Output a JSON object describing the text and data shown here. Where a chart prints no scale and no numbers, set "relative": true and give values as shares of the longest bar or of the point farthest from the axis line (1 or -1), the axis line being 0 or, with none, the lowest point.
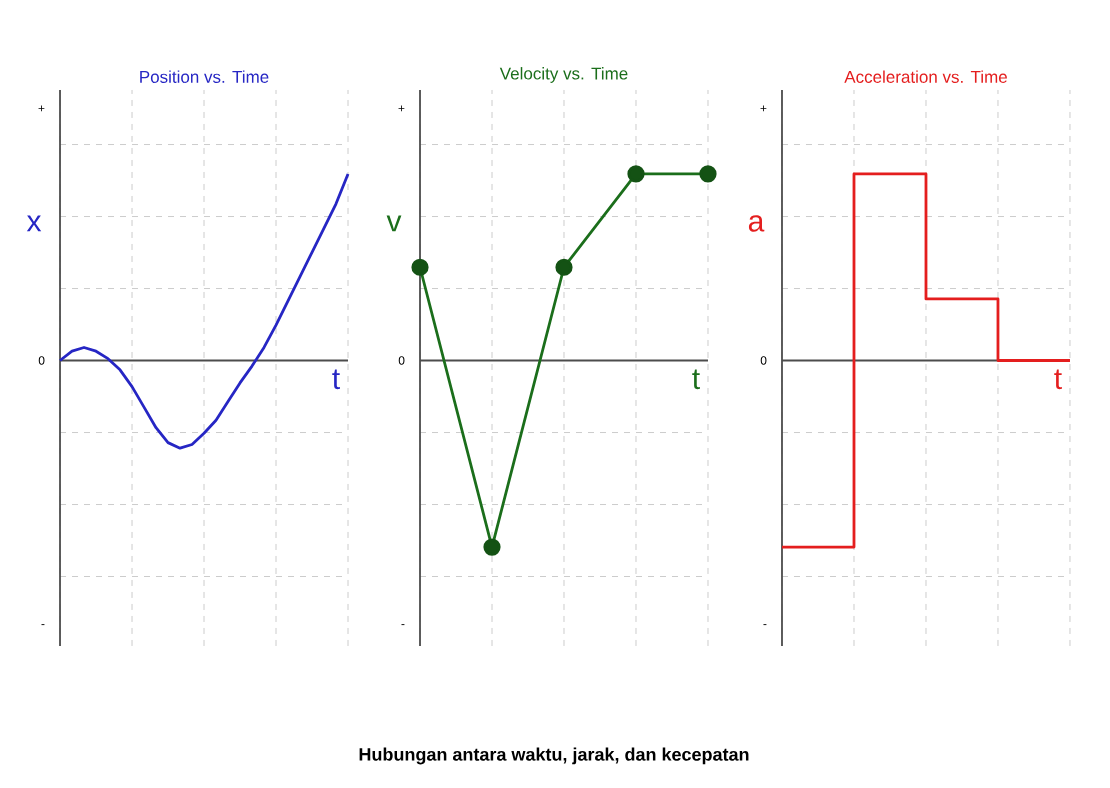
{
  "chart_data": [
    {
      "type": "line",
      "title": "Position vs. Time",
      "xlabel": "t",
      "ylabel": "x",
      "relative": true,
      "grid": true,
      "marker": "none",
      "line_style": "solid",
      "categories": [
        null,
        null,
        null,
        null,
        null,
        null,
        null,
        null,
        null,
        null,
        null,
        null,
        null,
        null,
        null,
        null,
        null,
        null,
        null,
        null,
        null,
        null,
        null,
        null,
        null
      ],
      "series": [
        {
          "color": "#2626c4",
          "values": [
            0,
            0.05,
            0.07,
            0.05,
            0.01,
            -0.05,
            -0.14,
            -0.25,
            -0.36,
            -0.44,
            -0.47,
            -0.45,
            -0.39,
            -0.32,
            -0.22,
            -0.12,
            -0.03,
            0.07,
            0.19,
            0.32,
            0.45,
            0.58,
            0.71,
            0.84,
            1
          ]
        }
      ],
      "annotations": [
        "+",
        "0",
        "-"
      ]
    },
    {
      "type": "line",
      "title": "Velocity vs. Time",
      "xlabel": "t",
      "ylabel": "v",
      "relative": true,
      "grid": true,
      "marker": "circle",
      "line_style": "solid",
      "categories": [
        null,
        null,
        null,
        null,
        null
      ],
      "series": [
        {
          "color": "#1b6e1b",
          "values": [
            0.5,
            -1,
            0.5,
            1,
            1
          ]
        }
      ],
      "annotations": [
        "+",
        "0",
        "-",
        "Hubungan antara waktu, jarak, dan kecepatan"
      ]
    },
    {
      "type": "step",
      "title": "Acceleration vs. Time",
      "xlabel": "t",
      "ylabel": "a",
      "relative": true,
      "grid": true,
      "marker": "none",
      "line_style": "solid",
      "categories": [
        null,
        null,
        null,
        null,
        null
      ],
      "series": [
        {
          "color": "#e41e1e",
          "values": [
            -1,
            1,
            0.33,
            0,
            0
          ]
        }
      ],
      "annotations": [
        "+",
        "0",
        "-"
      ]
    }
  ]
}
